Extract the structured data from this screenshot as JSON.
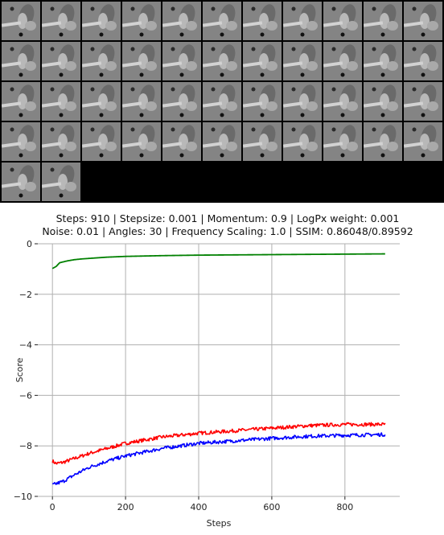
{
  "tiles": {
    "count": 46,
    "columns": 11,
    "base_color": "#8a8a8a"
  },
  "chart_data": {
    "type": "line",
    "title_lines": [
      "Steps: 910 | Stepsize: 0.001 | Momentum: 0.9 | LogPx weight: 0.001",
      "Noise: 0.01 | Angles: 30 | Frequency Scaling: 1.0 | SSIM: 0.86048/0.89592"
    ],
    "xlabel": "Steps",
    "ylabel": "Score",
    "xlim": [
      -40,
      950
    ],
    "ylim": [
      -10,
      0
    ],
    "xticks": [
      0,
      200,
      400,
      600,
      800
    ],
    "yticks": [
      0,
      -2,
      -4,
      -6,
      -8,
      -10
    ],
    "grid": true,
    "series": [
      {
        "color": "#008000",
        "x": [
          0,
          10,
          20,
          40,
          60,
          80,
          100,
          150,
          200,
          300,
          400,
          500,
          600,
          700,
          800,
          910
        ],
        "y": [
          -0.98,
          -0.9,
          -0.75,
          -0.68,
          -0.63,
          -0.6,
          -0.58,
          -0.53,
          -0.5,
          -0.47,
          -0.45,
          -0.44,
          -0.43,
          -0.42,
          -0.41,
          -0.4
        ],
        "noise": 0
      },
      {
        "color": "#ff0000",
        "x": [
          0,
          10,
          30,
          60,
          100,
          150,
          200,
          300,
          400,
          500,
          600,
          700,
          800,
          910
        ],
        "y": [
          -8.6,
          -8.7,
          -8.65,
          -8.5,
          -8.3,
          -8.1,
          -7.9,
          -7.65,
          -7.5,
          -7.4,
          -7.3,
          -7.2,
          -7.15,
          -7.15
        ],
        "noise": 0.07
      },
      {
        "color": "#0000ff",
        "x": [
          0,
          10,
          30,
          60,
          100,
          150,
          200,
          300,
          400,
          500,
          600,
          700,
          800,
          910
        ],
        "y": [
          -9.55,
          -9.5,
          -9.4,
          -9.15,
          -8.85,
          -8.6,
          -8.4,
          -8.1,
          -7.9,
          -7.8,
          -7.7,
          -7.62,
          -7.58,
          -7.55
        ],
        "noise": 0.07
      }
    ]
  }
}
